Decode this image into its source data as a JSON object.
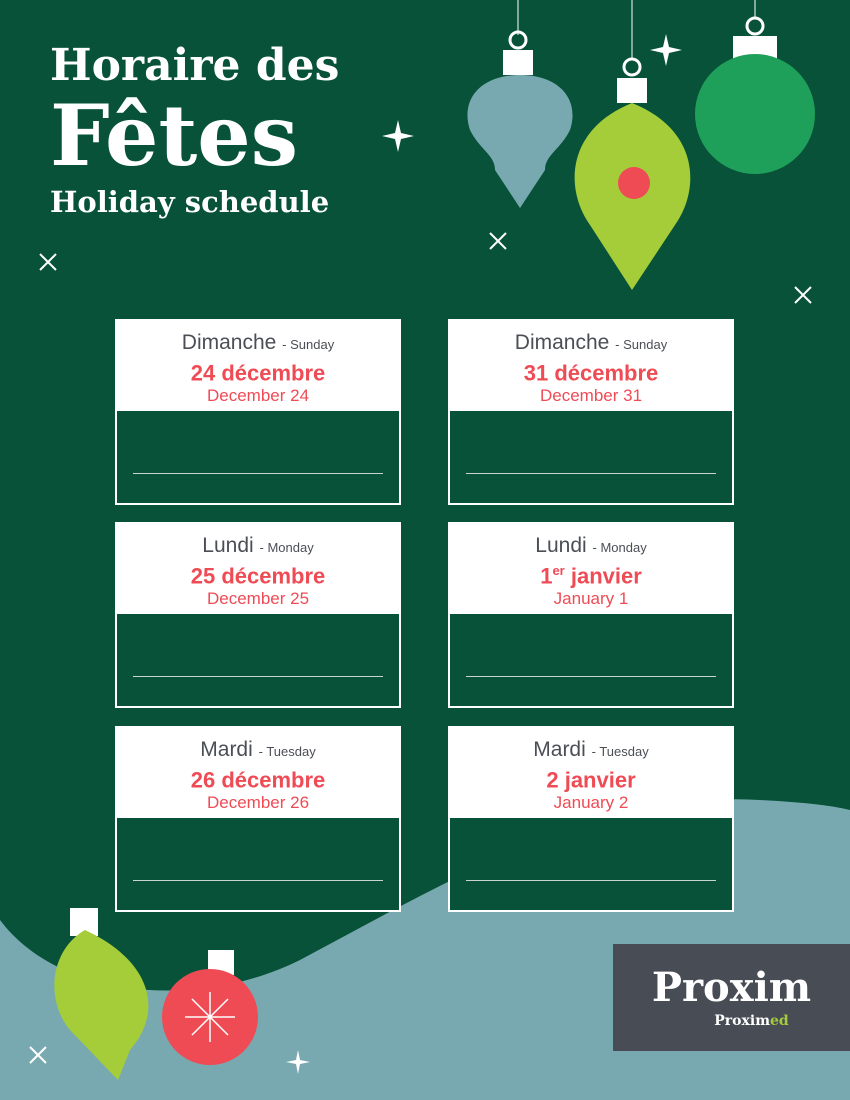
{
  "title": {
    "line1": "Horaire des",
    "line2": "Fêtes",
    "line3": "Holiday schedule"
  },
  "colors": {
    "background": "#075238",
    "accent": "#ef4b55",
    "wave": "#79a9b0",
    "ornament_green": "#a4cd39"
  },
  "days": [
    {
      "day_fr": "Dimanche",
      "day_en": "- Sunday",
      "date_fr": "24 décembre",
      "date_sup": "",
      "date_fr_rest": "",
      "date_en": "December 24"
    },
    {
      "day_fr": "Dimanche",
      "day_en": "- Sunday",
      "date_fr": "31 décembre",
      "date_sup": "",
      "date_fr_rest": "",
      "date_en": "December 31"
    },
    {
      "day_fr": "Lundi",
      "day_en": "- Monday",
      "date_fr": "25 décembre",
      "date_sup": "",
      "date_fr_rest": "",
      "date_en": "December 25"
    },
    {
      "day_fr": "Lundi",
      "day_en": "- Monday",
      "date_fr": "1",
      "date_sup": "er",
      "date_fr_rest": " janvier",
      "date_en": "January 1"
    },
    {
      "day_fr": "Mardi",
      "day_en": "- Tuesday",
      "date_fr": "26 décembre",
      "date_sup": "",
      "date_fr_rest": "",
      "date_en": "December 26"
    },
    {
      "day_fr": "Mardi",
      "day_en": "- Tuesday",
      "date_fr": "2 janvier",
      "date_sup": "",
      "date_fr_rest": "",
      "date_en": "January 2"
    }
  ],
  "logo": {
    "main": "Proxim",
    "sub": "Proxim",
    "sub_accent": "ed"
  }
}
